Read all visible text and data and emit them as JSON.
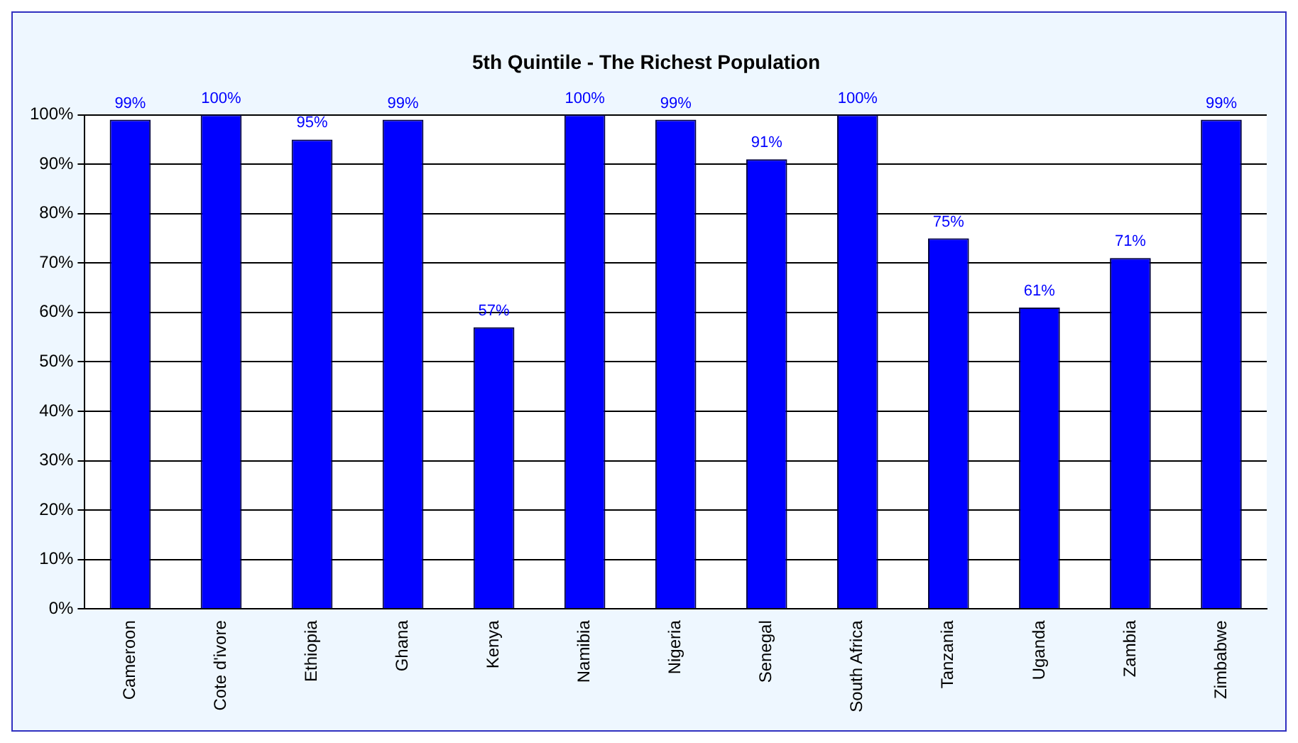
{
  "chart_data": {
    "type": "bar",
    "title": "5th Quintile - The Richest Population",
    "categories": [
      "Cameroon",
      "Cote d'ivore",
      "Ethiopia",
      "Ghana",
      "Kenya",
      "Namibia",
      "Nigeria",
      "Senegal",
      "South Africa",
      "Tanzania",
      "Uganda",
      "Zambia",
      "Zimbabwe"
    ],
    "values": [
      99,
      100,
      95,
      99,
      57,
      100,
      99,
      91,
      100,
      75,
      61,
      71,
      99
    ],
    "value_labels": [
      "99%",
      "100%",
      "95%",
      "99%",
      "57%",
      "100%",
      "99%",
      "91%",
      "100%",
      "75%",
      "61%",
      "71%",
      "99%"
    ],
    "color": "#0000ff",
    "ylim": [
      0,
      100
    ],
    "yticks": [
      {
        "value": 0,
        "label": "0%"
      },
      {
        "value": 10,
        "label": "10%"
      },
      {
        "value": 20,
        "label": "20%"
      },
      {
        "value": 30,
        "label": "30%"
      },
      {
        "value": 40,
        "label": "40%"
      },
      {
        "value": 50,
        "label": "50%"
      },
      {
        "value": 60,
        "label": "60%"
      },
      {
        "value": 70,
        "label": "70%"
      },
      {
        "value": 80,
        "label": "80%"
      },
      {
        "value": 90,
        "label": "90%"
      },
      {
        "value": 100,
        "label": "100%"
      }
    ],
    "grid": "y",
    "legend": false
  }
}
